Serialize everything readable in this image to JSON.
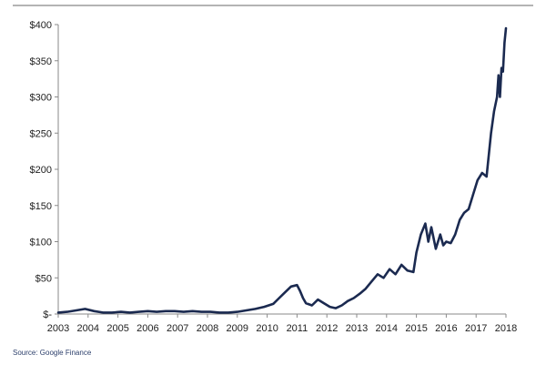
{
  "chart_data": {
    "type": "line",
    "title": "",
    "xlabel": "",
    "ylabel": "",
    "grid": false,
    "legend": "none",
    "xlim": [
      2003,
      2018
    ],
    "ylim": [
      0,
      400
    ],
    "x_ticks": [
      2003,
      2004,
      2005,
      2006,
      2007,
      2008,
      2009,
      2010,
      2011,
      2012,
      2013,
      2014,
      2015,
      2016,
      2017,
      2018
    ],
    "x_tick_labels": [
      "2003",
      "2004",
      "2005",
      "2006",
      "2007",
      "2008",
      "2009",
      "2010",
      "2011",
      "2012",
      "2013",
      "2014",
      "2015",
      "2016",
      "2017",
      "2018"
    ],
    "y_ticks": [
      0,
      50,
      100,
      150,
      200,
      250,
      300,
      350,
      400
    ],
    "y_tick_labels": [
      "$-",
      "$50",
      "$100",
      "$150",
      "$200",
      "$250",
      "$300",
      "$350",
      "$400"
    ],
    "series": [
      {
        "color": "#1b2a50",
        "x": [
          2003.0,
          2003.3,
          2003.6,
          2003.9,
          2004.2,
          2004.5,
          2004.8,
          2005.1,
          2005.4,
          2005.7,
          2006.0,
          2006.3,
          2006.6,
          2006.9,
          2007.2,
          2007.5,
          2007.8,
          2008.1,
          2008.4,
          2008.7,
          2009.0,
          2009.3,
          2009.6,
          2009.9,
          2010.2,
          2010.4,
          2010.6,
          2010.8,
          2011.0,
          2011.1,
          2011.2,
          2011.3,
          2011.5,
          2011.7,
          2011.9,
          2012.1,
          2012.3,
          2012.5,
          2012.7,
          2012.9,
          2013.1,
          2013.3,
          2013.5,
          2013.7,
          2013.9,
          2014.1,
          2014.3,
          2014.5,
          2014.7,
          2014.9,
          2015.0,
          2015.15,
          2015.3,
          2015.4,
          2015.5,
          2015.65,
          2015.8,
          2015.9,
          2016.0,
          2016.15,
          2016.3,
          2016.45,
          2016.6,
          2016.75,
          2016.9,
          2017.05,
          2017.2,
          2017.35,
          2017.5,
          2017.6,
          2017.7,
          2017.75,
          2017.8,
          2017.85,
          2017.9,
          2017.95,
          2018.0
        ],
        "values": [
          2,
          3,
          5,
          7,
          4,
          2,
          2,
          3,
          2,
          3,
          4,
          3,
          4,
          4,
          3,
          4,
          3,
          3,
          2,
          2,
          3,
          5,
          7,
          10,
          14,
          22,
          30,
          38,
          40,
          32,
          22,
          15,
          12,
          20,
          15,
          10,
          8,
          12,
          18,
          22,
          28,
          35,
          45,
          55,
          50,
          62,
          55,
          68,
          60,
          58,
          85,
          110,
          125,
          100,
          120,
          90,
          110,
          95,
          100,
          98,
          110,
          130,
          140,
          145,
          165,
          185,
          195,
          190,
          250,
          280,
          300,
          330,
          300,
          340,
          335,
          375,
          395
        ]
      }
    ]
  },
  "footer": {
    "source": "Source: Google Finance"
  }
}
